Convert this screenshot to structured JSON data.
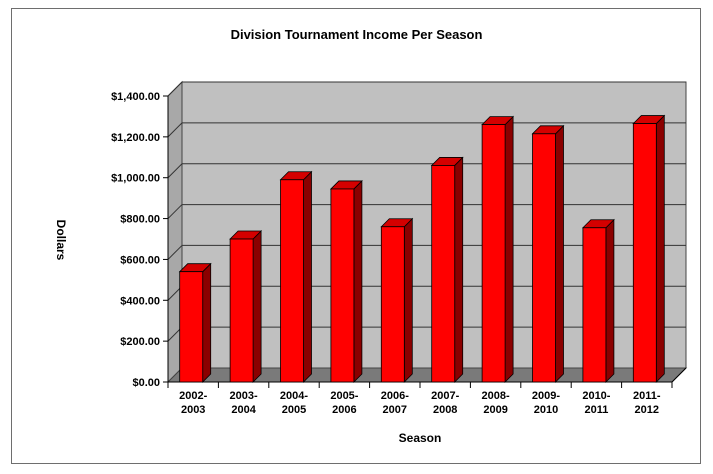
{
  "chart_data": {
    "type": "bar",
    "title": "Division Tournament Income Per Season",
    "xlabel": "Season",
    "ylabel": "Dollars",
    "ylim": [
      0,
      1400
    ],
    "yticks": [
      "$0.00",
      "$200.00",
      "$400.00",
      "$600.00",
      "$800.00",
      "$1,000.00",
      "$1,200.00",
      "$1,400.00"
    ],
    "categories": [
      [
        "2002-",
        "2003"
      ],
      [
        "2003-",
        "2004"
      ],
      [
        "2004-",
        "2005"
      ],
      [
        "2005-",
        "2006"
      ],
      [
        "2006-",
        "2007"
      ],
      [
        "2007-",
        "2008"
      ],
      [
        "2008-",
        "2009"
      ],
      [
        "2009-",
        "2010"
      ],
      [
        "2010-",
        "2011"
      ],
      [
        "2011-",
        "2012"
      ]
    ],
    "values": [
      540,
      700,
      990,
      945,
      760,
      1060,
      1260,
      1215,
      755,
      1265
    ],
    "grid": true,
    "legend": "none",
    "colors": {
      "bar_front": "#ff0000",
      "bar_side": "#8b0000",
      "bar_top": "#d40000",
      "plot_bg": "#c0c0c0"
    }
  }
}
